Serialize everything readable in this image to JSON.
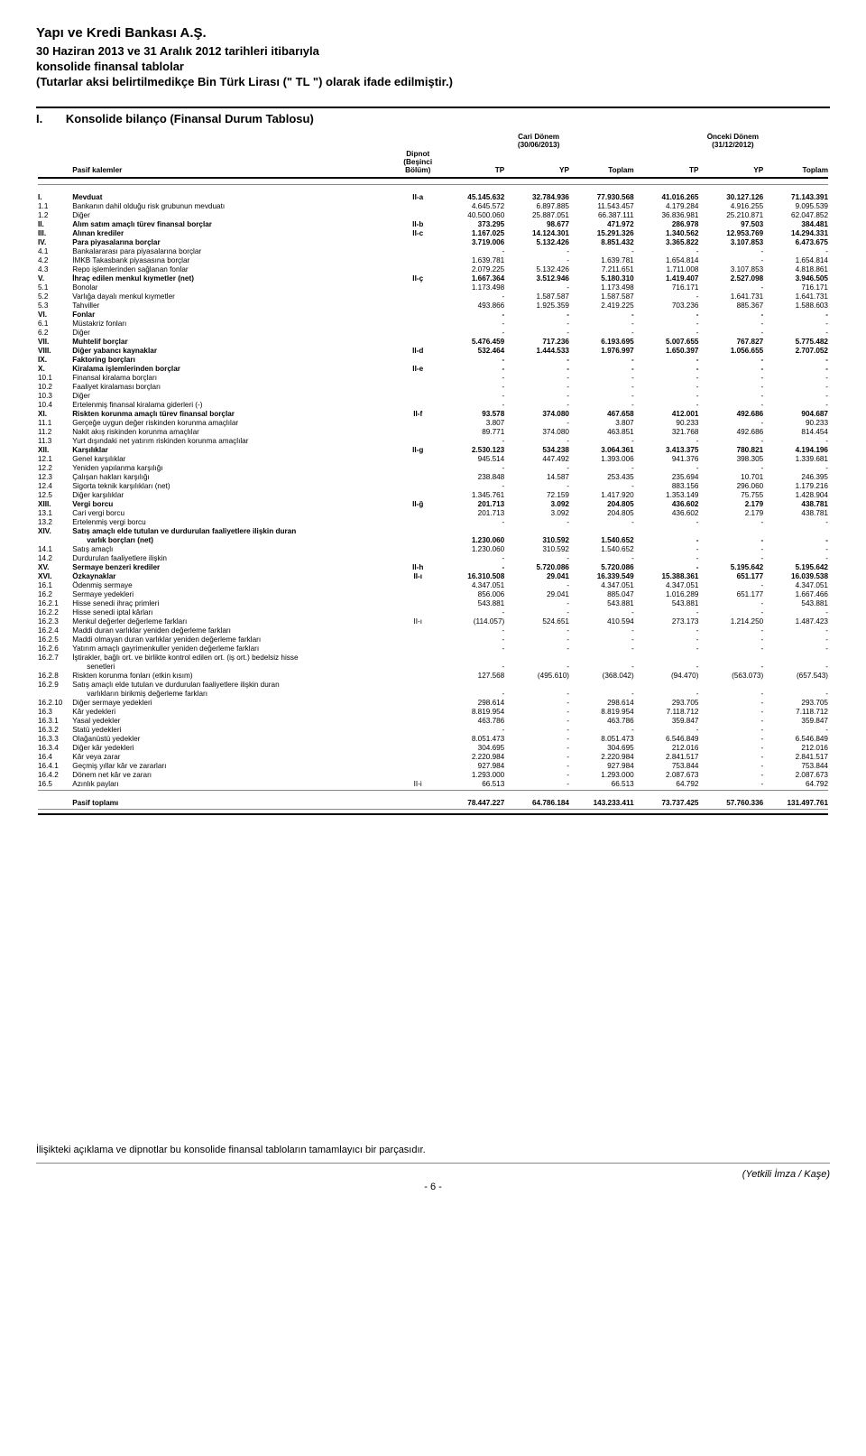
{
  "header": {
    "company": "Yapı ve Kredi Bankası A.Ş.",
    "subtitle_line1": "30 Haziran 2013 ve 31 Aralık 2012 tarihleri itibarıyla",
    "subtitle_line2": "konsolide finansal tablolar",
    "subtitle_line3": "(Tutarlar aksi belirtilmedikçe Bin Türk Lirası (\" TL \") olarak ifade edilmiştir.)",
    "section_number": "I.",
    "section_title": "Konsolide bilanço (Finansal Durum Tablosu)"
  },
  "table": {
    "period_current": "Cari Dönem",
    "period_current_date": "(30/06/2013)",
    "period_prior": "Önceki Dönem",
    "period_prior_date": "(31/12/2012)",
    "note_header_l1": "Dipnot",
    "note_header_l2": "(Beşinci",
    "note_header_l3": "Bölüm)",
    "row_label_header": "Pasif kalemler",
    "col_tp": "TP",
    "col_yp": "YP",
    "col_toplam": "Toplam",
    "rows": [
      {
        "c": "I.",
        "l": "Mevduat",
        "n": "II-a",
        "v": [
          "45.145.632",
          "32.784.936",
          "77.930.568",
          "41.016.265",
          "30.127.126",
          "71.143.391"
        ],
        "b": true
      },
      {
        "c": "1.1",
        "l": "Bankanın dahil olduğu risk grubunun mevduatı",
        "n": "",
        "v": [
          "4.645.572",
          "6.897.885",
          "11.543.457",
          "4.179.284",
          "4.916.255",
          "9.095.539"
        ]
      },
      {
        "c": "1.2",
        "l": "Diğer",
        "n": "",
        "v": [
          "40.500.060",
          "25.887.051",
          "66.387.111",
          "36.836.981",
          "25.210.871",
          "62.047.852"
        ]
      },
      {
        "c": "II.",
        "l": "Alım satım amaçlı türev finansal borçlar",
        "n": "II-b",
        "v": [
          "373.295",
          "98.677",
          "471.972",
          "286.978",
          "97.503",
          "384.481"
        ],
        "b": true
      },
      {
        "c": "III.",
        "l": "Alınan krediler",
        "n": "II-c",
        "v": [
          "1.167.025",
          "14.124.301",
          "15.291.326",
          "1.340.562",
          "12.953.769",
          "14.294.331"
        ],
        "b": true
      },
      {
        "c": "IV.",
        "l": "Para piyasalarına borçlar",
        "n": "",
        "v": [
          "3.719.006",
          "5.132.426",
          "8.851.432",
          "3.365.822",
          "3.107.853",
          "6.473.675"
        ],
        "b": true
      },
      {
        "c": "4.1",
        "l": "Bankalararası para piyasalarına borçlar",
        "n": "",
        "v": [
          "-",
          "-",
          "-",
          "-",
          "-",
          "-"
        ]
      },
      {
        "c": "4.2",
        "l": "İMKB Takasbank piyasasına borçlar",
        "n": "",
        "v": [
          "1.639.781",
          "-",
          "1.639.781",
          "1.654.814",
          "-",
          "1.654.814"
        ]
      },
      {
        "c": "4.3",
        "l": "Repo işlemlerinden sağlanan fonlar",
        "n": "",
        "v": [
          "2.079.225",
          "5.132.426",
          "7.211.651",
          "1.711.008",
          "3.107.853",
          "4.818.861"
        ]
      },
      {
        "c": "V.",
        "l": "İhraç edilen menkul kıymetler (net)",
        "n": "II-ç",
        "v": [
          "1.667.364",
          "3.512.946",
          "5.180.310",
          "1.419.407",
          "2.527.098",
          "3.946.505"
        ],
        "b": true
      },
      {
        "c": "5.1",
        "l": "Bonolar",
        "n": "",
        "v": [
          "1.173.498",
          "-",
          "1.173.498",
          "716.171",
          "-",
          "716.171"
        ]
      },
      {
        "c": "5.2",
        "l": "Varlığa dayalı menkul kıymetler",
        "n": "",
        "v": [
          "-",
          "1.587.587",
          "1.587.587",
          "-",
          "1.641.731",
          "1.641.731"
        ]
      },
      {
        "c": "5.3",
        "l": "Tahviller",
        "n": "",
        "v": [
          "493.866",
          "1.925.359",
          "2.419.225",
          "703.236",
          "885.367",
          "1.588.603"
        ]
      },
      {
        "c": "VI.",
        "l": "Fonlar",
        "n": "",
        "v": [
          "-",
          "-",
          "-",
          "-",
          "-",
          "-"
        ],
        "b": true
      },
      {
        "c": "6.1",
        "l": "Müstakriz fonları",
        "n": "",
        "v": [
          "-",
          "-",
          "-",
          "-",
          "-",
          "-"
        ]
      },
      {
        "c": "6.2",
        "l": "Diğer",
        "n": "",
        "v": [
          "-",
          "-",
          "-",
          "-",
          "-",
          "-"
        ]
      },
      {
        "c": "VII.",
        "l": "Muhtelif borçlar",
        "n": "",
        "v": [
          "5.476.459",
          "717.236",
          "6.193.695",
          "5.007.655",
          "767.827",
          "5.775.482"
        ],
        "b": true
      },
      {
        "c": "VIII.",
        "l": "Diğer yabancı kaynaklar",
        "n": "II-d",
        "v": [
          "532.464",
          "1.444.533",
          "1.976.997",
          "1.650.397",
          "1.056.655",
          "2.707.052"
        ],
        "b": true
      },
      {
        "c": "IX.",
        "l": "Faktoring borçları",
        "n": "",
        "v": [
          "-",
          "-",
          "-",
          "-",
          "-",
          "-"
        ],
        "b": true
      },
      {
        "c": "X.",
        "l": "Kiralama işlemlerinden borçlar",
        "n": "II-e",
        "v": [
          "-",
          "-",
          "-",
          "-",
          "-",
          "-"
        ],
        "b": true
      },
      {
        "c": "10.1",
        "l": "Finansal kiralama borçları",
        "n": "",
        "v": [
          "-",
          "-",
          "-",
          "-",
          "-",
          "-"
        ]
      },
      {
        "c": "10.2",
        "l": "Faaliyet kiralaması borçları",
        "n": "",
        "v": [
          "-",
          "-",
          "-",
          "-",
          "-",
          "-"
        ]
      },
      {
        "c": "10.3",
        "l": "Diğer",
        "n": "",
        "v": [
          "-",
          "-",
          "-",
          "-",
          "-",
          "-"
        ]
      },
      {
        "c": "10.4",
        "l": "Ertelenmiş finansal kiralama giderleri (-)",
        "n": "",
        "v": [
          "-",
          "-",
          "-",
          "-",
          "-",
          "-"
        ]
      },
      {
        "c": "XI.",
        "l": "Riskten korunma amaçlı türev finansal borçlar",
        "n": "II-f",
        "v": [
          "93.578",
          "374.080",
          "467.658",
          "412.001",
          "492.686",
          "904.687"
        ],
        "b": true
      },
      {
        "c": "11.1",
        "l": "Gerçeğe uygun değer riskinden korunma amaçlılar",
        "n": "",
        "v": [
          "3.807",
          "-",
          "3.807",
          "90.233",
          "-",
          "90.233"
        ]
      },
      {
        "c": "11.2",
        "l": "Nakit akış riskinden korunma amaçlılar",
        "n": "",
        "v": [
          "89.771",
          "374.080",
          "463.851",
          "321.768",
          "492.686",
          "814.454"
        ]
      },
      {
        "c": "11.3",
        "l": "Yurt dışındaki net yatırım riskinden korunma amaçlılar",
        "n": "",
        "v": [
          "-",
          "-",
          "-",
          "-",
          "-",
          "-"
        ]
      },
      {
        "c": "XII.",
        "l": "Karşılıklar",
        "n": "II-g",
        "v": [
          "2.530.123",
          "534.238",
          "3.064.361",
          "3.413.375",
          "780.821",
          "4.194.196"
        ],
        "b": true
      },
      {
        "c": "12.1",
        "l": "Genel karşılıklar",
        "n": "",
        "v": [
          "945.514",
          "447.492",
          "1.393.006",
          "941.376",
          "398.305",
          "1.339.681"
        ]
      },
      {
        "c": "12.2",
        "l": "Yeniden yapılanma karşılığı",
        "n": "",
        "v": [
          "-",
          "-",
          "-",
          "-",
          "-",
          "-"
        ]
      },
      {
        "c": "12.3",
        "l": "Çalışan hakları karşılığı",
        "n": "",
        "v": [
          "238.848",
          "14.587",
          "253.435",
          "235.694",
          "10.701",
          "246.395"
        ]
      },
      {
        "c": "12.4",
        "l": "Sigorta teknik karşılıkları (net)",
        "n": "",
        "v": [
          "-",
          "-",
          "-",
          "883.156",
          "296.060",
          "1.179.216"
        ]
      },
      {
        "c": "12.5",
        "l": "Diğer karşılıklar",
        "n": "",
        "v": [
          "1.345.761",
          "72.159",
          "1.417.920",
          "1.353.149",
          "75.755",
          "1.428.904"
        ]
      },
      {
        "c": "XIII.",
        "l": "Vergi borcu",
        "n": "II-ğ",
        "v": [
          "201.713",
          "3.092",
          "204.805",
          "436.602",
          "2.179",
          "438.781"
        ],
        "b": true
      },
      {
        "c": "13.1",
        "l": "Cari vergi borcu",
        "n": "",
        "v": [
          "201.713",
          "3.092",
          "204.805",
          "436.602",
          "2.179",
          "438.781"
        ]
      },
      {
        "c": "13.2",
        "l": "Ertelenmiş vergi borcu",
        "n": "",
        "v": [
          "-",
          "-",
          "-",
          "-",
          "-",
          "-"
        ]
      },
      {
        "c": "XIV.",
        "l": "Satış amaçlı elde tutulan ve durdurulan faaliyetlere ilişkin duran",
        "n": "",
        "v": [
          "",
          "",
          "",
          "",
          "",
          ""
        ],
        "b": true,
        "nowrapLabel": true
      },
      {
        "c": "",
        "l": "varlık borçları (net)",
        "n": "",
        "v": [
          "1.230.060",
          "310.592",
          "1.540.652",
          "-",
          "-",
          "-"
        ],
        "b": true,
        "indent": 2
      },
      {
        "c": "14.1",
        "l": "Satış amaçlı",
        "n": "",
        "v": [
          "1.230.060",
          "310.592",
          "1.540.652",
          "-",
          "-",
          "-"
        ]
      },
      {
        "c": "14.2",
        "l": "Durdurulan faaliyetlere ilişkin",
        "n": "",
        "v": [
          "-",
          "-",
          "-",
          "-",
          "-",
          "-"
        ]
      },
      {
        "c": "XV.",
        "l": "Sermaye benzeri krediler",
        "n": "II-h",
        "v": [
          "-",
          "5.720.086",
          "5.720.086",
          "-",
          "5.195.642",
          "5.195.642"
        ],
        "b": true
      },
      {
        "c": "XVI.",
        "l": "Özkaynaklar",
        "n": "II-ı",
        "v": [
          "16.310.508",
          "29.041",
          "16.339.549",
          "15.388.361",
          "651.177",
          "16.039.538"
        ],
        "b": true
      },
      {
        "c": "16.1",
        "l": "Ödenmiş sermaye",
        "n": "",
        "v": [
          "4.347.051",
          "-",
          "4.347.051",
          "4.347.051",
          "-",
          "4.347.051"
        ]
      },
      {
        "c": "16.2",
        "l": "Sermaye yedekleri",
        "n": "",
        "v": [
          "856.006",
          "29.041",
          "885.047",
          "1.016.289",
          "651.177",
          "1.667.466"
        ]
      },
      {
        "c": "16.2.1",
        "l": "Hisse senedi ihraç primleri",
        "n": "",
        "v": [
          "543.881",
          "-",
          "543.881",
          "543.881",
          "-",
          "543.881"
        ]
      },
      {
        "c": "16.2.2",
        "l": "Hisse senedi iptal kârları",
        "n": "",
        "v": [
          "-",
          "-",
          "-",
          "-",
          "-",
          "-"
        ]
      },
      {
        "c": "16.2.3",
        "l": "Menkul değerler değerleme farkları",
        "n": "II-ı",
        "v": [
          "(114.057)",
          "524.651",
          "410.594",
          "273.173",
          "1.214.250",
          "1.487.423"
        ]
      },
      {
        "c": "16.2.4",
        "l": "Maddi duran varlıklar yeniden değerleme farkları",
        "n": "",
        "v": [
          "-",
          "-",
          "-",
          "-",
          "-",
          "-"
        ]
      },
      {
        "c": "16.2.5",
        "l": "Maddi olmayan duran varlıklar yeniden değerleme farkları",
        "n": "",
        "v": [
          "-",
          "-",
          "-",
          "-",
          "-",
          "-"
        ]
      },
      {
        "c": "16.2.6",
        "l": "Yatırım amaçlı gayrimenkuller yeniden değerleme farkları",
        "n": "",
        "v": [
          "-",
          "-",
          "-",
          "-",
          "-",
          "-"
        ]
      },
      {
        "c": "16.2.7",
        "l": "İştirakler, bağlı ort. ve birlikte kontrol edilen ort. (iş ort.) bedelsiz hisse",
        "n": "",
        "v": [
          "",
          "",
          "",
          "",
          "",
          ""
        ],
        "nowrapLabel": true
      },
      {
        "c": "",
        "l": "senetleri",
        "n": "",
        "v": [
          "-",
          "-",
          "-",
          "-",
          "-",
          "-"
        ],
        "indent": 2
      },
      {
        "c": "16.2.8",
        "l": "Riskten korunma fonları (etkin kısım)",
        "n": "",
        "v": [
          "127.568",
          "(495.610)",
          "(368.042)",
          "(94.470)",
          "(563.073)",
          "(657.543)"
        ]
      },
      {
        "c": "16.2.9",
        "l": "Satış amaçlı elde tutulan ve durdurulan faaliyetlere ilişkin duran",
        "n": "",
        "v": [
          "",
          "",
          "",
          "",
          "",
          ""
        ],
        "nowrapLabel": true
      },
      {
        "c": "",
        "l": "varlıkların birikmiş değerleme farkları",
        "n": "",
        "v": [
          "-",
          "-",
          "-",
          "-",
          "-",
          "-"
        ],
        "indent": 2
      },
      {
        "c": "16.2.10",
        "l": "Diğer sermaye yedekleri",
        "n": "",
        "v": [
          "298.614",
          "-",
          "298.614",
          "293.705",
          "-",
          "293.705"
        ]
      },
      {
        "c": "16.3",
        "l": "Kâr yedekleri",
        "n": "",
        "v": [
          "8.819.954",
          "-",
          "8.819.954",
          "7.118.712",
          "-",
          "7.118.712"
        ]
      },
      {
        "c": "16.3.1",
        "l": "Yasal yedekler",
        "n": "",
        "v": [
          "463.786",
          "-",
          "463.786",
          "359.847",
          "-",
          "359.847"
        ]
      },
      {
        "c": "16.3.2",
        "l": "Statü yedekleri",
        "n": "",
        "v": [
          "-",
          "-",
          "-",
          "-",
          "-",
          "-"
        ]
      },
      {
        "c": "16.3.3",
        "l": "Olağanüstü yedekler",
        "n": "",
        "v": [
          "8.051.473",
          "-",
          "8.051.473",
          "6.546.849",
          "-",
          "6.546.849"
        ]
      },
      {
        "c": "16.3.4",
        "l": "Diğer kâr yedekleri",
        "n": "",
        "v": [
          "304.695",
          "-",
          "304.695",
          "212.016",
          "-",
          "212.016"
        ]
      },
      {
        "c": "16.4",
        "l": "Kâr veya zarar",
        "n": "",
        "v": [
          "2.220.984",
          "-",
          "2.220.984",
          "2.841.517",
          "-",
          "2.841.517"
        ]
      },
      {
        "c": "16.4.1",
        "l": "Geçmiş yıllar kâr ve zararları",
        "n": "",
        "v": [
          "927.984",
          "-",
          "927.984",
          "753.844",
          "-",
          "753.844"
        ]
      },
      {
        "c": "16.4.2",
        "l": "Dönem net kâr ve zararı",
        "n": "",
        "v": [
          "1.293.000",
          "-",
          "1.293.000",
          "2.087.673",
          "-",
          "2.087.673"
        ]
      },
      {
        "c": "16.5",
        "l": "Azınlık payları",
        "n": "II-i",
        "v": [
          "66.513",
          "-",
          "66.513",
          "64.792",
          "-",
          "64.792"
        ]
      }
    ],
    "total": {
      "l": "Pasif toplamı",
      "v": [
        "78.447.227",
        "64.786.184",
        "143.233.411",
        "73.737.425",
        "57.760.336",
        "131.497.761"
      ]
    }
  },
  "footer": {
    "note": "İlişikteki açıklama ve dipnotlar bu konsolide finansal tabloların tamamlayıcı bir parçasıdır.",
    "signature": "(Yetkili İmza / Kaşe)",
    "page": "- 6 -"
  }
}
